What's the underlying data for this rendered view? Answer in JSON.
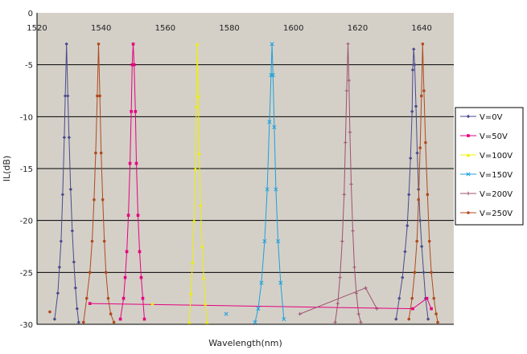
{
  "chart_data": {
    "type": "line",
    "title": "",
    "xlabel": "Wavelength(nm)",
    "ylabel": "IL(dB)",
    "xlim": [
      1520,
      1650
    ],
    "ylim": [
      -30,
      0
    ],
    "x_ticks": [
      1520,
      1540,
      1560,
      1580,
      1600,
      1620,
      1640
    ],
    "y_ticks": [
      0,
      -5,
      -10,
      -15,
      -20,
      -25,
      -30
    ],
    "x_tick_labels": [
      "1520",
      "1540",
      "1560",
      "1580",
      "1600",
      "1620",
      "1640"
    ],
    "y_tick_labels": [
      "0",
      "-5",
      "-10",
      "-15",
      "-20",
      "-25",
      "-30"
    ],
    "plot_background": "#d4d0c8",
    "grid": "horizontal",
    "legend_position": "right",
    "series": [
      {
        "name": "V=0V",
        "color": "#4a4a8c",
        "marker": "diamond",
        "peaks": [
          {
            "x": [
              1525.5,
              1526.5,
              1527.0,
              1527.5,
              1528.0,
              1528.5,
              1528.8,
              1529.2,
              1529.6,
              1530.0,
              1530.5,
              1531.0,
              1531.5,
              1532.0,
              1532.5,
              1533.0
            ],
            "y": [
              -29.5,
              -27.0,
              -24.5,
              -22.0,
              -17.5,
              -12.0,
              -8.0,
              -3.0,
              -8.0,
              -12.0,
              -17.0,
              -21.0,
              -24.0,
              -26.5,
              -28.5,
              -29.8
            ]
          },
          {
            "x": [
              1632.0,
              1633.0,
              1634.0,
              1634.8,
              1635.5,
              1636.0,
              1636.5,
              1637.0,
              1637.2,
              1637.5,
              1637.8,
              1638.2,
              1638.6,
              1639.0,
              1639.5,
              1640.0,
              1640.6,
              1641.2,
              1642.0
            ],
            "y": [
              -29.5,
              -27.5,
              -25.5,
              -23.0,
              -20.5,
              -17.5,
              -14.0,
              -9.5,
              -5.5,
              -3.5,
              -5.0,
              -9.0,
              -13.5,
              -17.0,
              -20.0,
              -22.5,
              -25.0,
              -27.5,
              -29.5
            ]
          }
        ]
      },
      {
        "name": "V=50V",
        "color": "#e6007e",
        "marker": "square",
        "peaks": [
          {
            "x": [
              1546.0,
              1547.0,
              1547.5,
              1548.0,
              1548.5,
              1549.0,
              1549.4,
              1549.7,
              1550.0,
              1550.3,
              1550.7,
              1551.0,
              1551.5,
              1552.0,
              1552.5,
              1553.0,
              1553.5
            ],
            "y": [
              -29.5,
              -27.5,
              -25.5,
              -23.0,
              -19.5,
              -14.5,
              -9.5,
              -5.0,
              -3.0,
              -5.0,
              -9.5,
              -14.5,
              -19.5,
              -23.0,
              -25.5,
              -27.5,
              -29.5
            ]
          },
          {
            "x": [
              1536.5,
              1637.2,
              1641.6,
              1643.0
            ],
            "y": [
              -28.0,
              -28.5,
              -27.5,
              -28.5
            ]
          }
        ]
      },
      {
        "name": "V=100V",
        "color": "#f0f000",
        "marker": "triangle",
        "peaks": [
          {
            "x": [
              1567.5,
              1568.0,
              1568.5,
              1569.0,
              1569.4,
              1569.7,
              1570.0,
              1570.3,
              1570.6,
              1571.0,
              1571.5,
              1572.0,
              1572.5,
              1573.0
            ],
            "y": [
              -29.8,
              -27.0,
              -24.0,
              -20.0,
              -15.0,
              -9.0,
              -3.0,
              -8.0,
              -13.5,
              -18.5,
              -22.5,
              -25.5,
              -28.0,
              -29.8
            ]
          },
          {
            "x": [
              1556.0
            ],
            "y": [
              -28.0
            ]
          }
        ]
      },
      {
        "name": "V=150V",
        "color": "#1ea0dc",
        "marker": "x",
        "peaks": [
          {
            "x": [
              1588.0,
              1589.0,
              1590.0,
              1591.0,
              1591.8,
              1592.5,
              1593.0,
              1593.3,
              1593.6,
              1594.0,
              1594.5,
              1595.2,
              1596.0,
              1597.0
            ],
            "y": [
              -29.8,
              -28.5,
              -26.0,
              -22.0,
              -17.0,
              -10.5,
              -6.0,
              -3.0,
              -6.0,
              -11.0,
              -17.0,
              -22.0,
              -26.0,
              -29.5
            ]
          },
          {
            "x": [
              1579.0
            ],
            "y": [
              -29.0
            ]
          }
        ]
      },
      {
        "name": "V=200V",
        "color": "#a05070",
        "marker": "plus",
        "peaks": [
          {
            "x": [
              1613.0,
              1613.8,
              1614.5,
              1615.2,
              1615.8,
              1616.2,
              1616.6,
              1617.0,
              1617.3,
              1617.6,
              1618.0,
              1618.5,
              1619.0,
              1619.6,
              1620.3,
              1621.0
            ],
            "y": [
              -29.8,
              -28.0,
              -25.5,
              -22.0,
              -17.5,
              -12.5,
              -7.5,
              -3.0,
              -6.5,
              -11.5,
              -16.5,
              -21.0,
              -24.5,
              -27.0,
              -29.0,
              -29.8
            ]
          },
          {
            "x": [
              1602.0,
              1622.5,
              1626.0
            ],
            "y": [
              -29.0,
              -26.5,
              -28.5
            ]
          }
        ]
      },
      {
        "name": "V=250V",
        "color": "#b04a1e",
        "marker": "circle",
        "peaks": [
          {
            "x": [
              1534.5,
              1535.5,
              1536.5,
              1537.2,
              1537.8,
              1538.3,
              1538.8,
              1539.2,
              1539.6,
              1540.0,
              1540.5,
              1541.0,
              1541.5,
              1542.2,
              1543.0,
              1544.0
            ],
            "y": [
              -29.8,
              -27.5,
              -25.0,
              -22.0,
              -18.0,
              -13.5,
              -8.0,
              -3.0,
              -8.0,
              -13.5,
              -18.0,
              -22.0,
              -25.0,
              -27.5,
              -29.0,
              -29.8
            ]
          },
          {
            "x": [
              1636.0,
              1637.0,
              1637.8,
              1638.5,
              1639.0,
              1639.5,
              1639.9,
              1640.3,
              1640.7,
              1641.2,
              1641.8,
              1642.4,
              1643.0,
              1643.8,
              1644.5,
              1645.0
            ],
            "y": [
              -29.5,
              -27.5,
              -25.0,
              -22.0,
              -18.0,
              -13.0,
              -8.0,
              -3.0,
              -7.5,
              -12.5,
              -17.5,
              -22.0,
              -25.0,
              -27.5,
              -29.0,
              -29.8
            ]
          },
          {
            "x": [
              1524.0
            ],
            "y": [
              -28.8
            ]
          }
        ]
      }
    ]
  }
}
